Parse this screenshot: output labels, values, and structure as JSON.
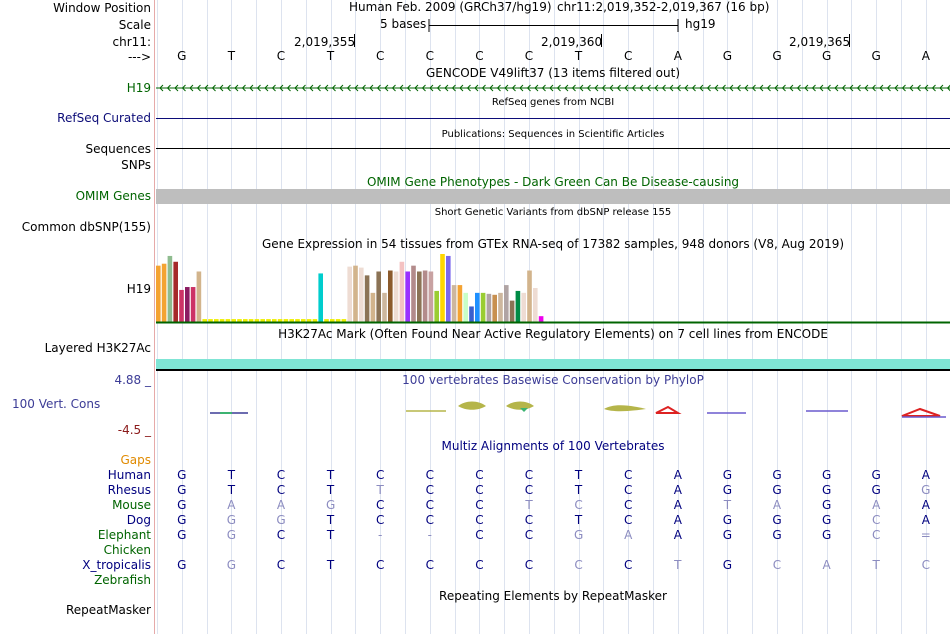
{
  "left_labels": {
    "window_position": "Window Position",
    "scale": "Scale",
    "chrom": "chr11:",
    "arrow": "--->",
    "h19_gencode": "H19",
    "refseq_curated": "RefSeq Curated",
    "sequences": "Sequences",
    "snps": "SNPs",
    "omim_genes": "OMIM Genes",
    "common_dbsnp": "Common dbSNP(155)",
    "h19_gtex": "H19",
    "layered_h3k27ac": "Layered H3K27Ac",
    "phylop_max": "4.88 _",
    "vert_cons": "100 Vert. Cons",
    "phylop_min": "-4.5 _",
    "gaps": "Gaps",
    "species": [
      "Human",
      "Rhesus",
      "Mouse",
      "Dog",
      "Elephant",
      "Chicken",
      "X_tropicalis",
      "Zebrafish"
    ],
    "repeatmasker": "RepeatMasker"
  },
  "header": {
    "assembly": "Human Feb. 2009 (GRCh37/hg19)",
    "position": "chr11:2,019,352-2,019,367 (16 bp)",
    "scale_text": "5 bases",
    "scale_db": "hg19",
    "ruler": [
      "2,019,355",
      "2,019,360",
      "2,019,365"
    ]
  },
  "bases": [
    "G",
    "T",
    "C",
    "T",
    "C",
    "C",
    "C",
    "C",
    "T",
    "C",
    "A",
    "G",
    "G",
    "G",
    "G",
    "A"
  ],
  "tracks": {
    "gencode_title": "GENCODE V49lift37 (13 items filtered out)",
    "refseq_title": "RefSeq genes from NCBI",
    "publications_title": "Publications: Sequences in Scientific Articles",
    "omim_title": "OMIM Gene Phenotypes - Dark Green Can Be Disease-causing",
    "dbsnp_title": "Short Genetic Variants from dbSNP release 155",
    "gtex_title": "Gene Expression in 54 tissues from GTEx RNA-seq of 17382 samples, 948 donors (V8, Aug 2019)",
    "h3k27ac_title": "H3K27Ac Mark (Often Found Near Active Regulatory Elements) on 7 cell lines from ENCODE",
    "phylop_title": "100 vertebrates Basewise Conservation by PhyloP",
    "multiz_title": "Multiz Alignments of 100 Vertebrates",
    "repeatmasker_title": "Repeating Elements by RepeatMasker"
  },
  "colors": {
    "gencode": "#006400",
    "refseq": "#0c0c78",
    "omim": "#006400",
    "phylop": "#3c3c96",
    "multiz": "#00007f",
    "gaps": "#e08a00",
    "h3k27ac": "#7fe5d5"
  },
  "gtex": {
    "values": [
      58,
      60,
      68,
      62,
      33,
      36,
      36,
      52,
      3,
      3,
      3,
      3,
      3,
      3,
      3,
      3,
      3,
      3,
      3,
      3,
      3,
      3,
      3,
      3,
      3,
      3,
      3,
      3,
      50,
      3,
      3,
      3,
      3,
      57,
      58,
      56,
      48,
      30,
      52,
      30,
      53,
      52,
      62,
      52,
      58,
      52,
      53,
      52,
      32,
      70,
      68,
      38,
      38,
      30,
      16,
      30,
      30,
      29,
      28,
      30,
      38,
      22,
      32,
      30,
      53,
      35,
      6
    ],
    "colors": [
      "#f4a332",
      "#f4a332",
      "#8fbc8f",
      "#a52a2a",
      "#cc3366",
      "#8b1c62",
      "#cc3366",
      "#d2b48c",
      "#eeee00",
      "#eeee00",
      "#eeee00",
      "#eeee00",
      "#eeee00",
      "#eeee00",
      "#eeee00",
      "#eeee00",
      "#eeee00",
      "#eeee00",
      "#eeee00",
      "#eeee00",
      "#eeee00",
      "#eeee00",
      "#eeee00",
      "#eeee00",
      "#eeee00",
      "#eeee00",
      "#eeee00",
      "#eeee00",
      "#00cdcd",
      "#eeee00",
      "#eeee00",
      "#eeee00",
      "#eeee00",
      "#eedcd3",
      "#d2b48c",
      "#eedcd3",
      "#8b7355",
      "#d2b48c",
      "#8b7355",
      "#cdb79e",
      "#8b5a2b",
      "#eedcd3",
      "#f4c2c2",
      "#9b30ff",
      "#b38b8b",
      "#8b7355",
      "#b38b8b",
      "#c8a2a2",
      "#9acd32",
      "#ffd700",
      "#7b68ee",
      "#cdb79e",
      "#f4a332",
      "#c8ffc8",
      "#3a5fcd",
      "#1e90ff",
      "#9acd32",
      "#b0a4a4",
      "#c89050",
      "#cdb79e",
      "#b0a4a4",
      "#8b7355",
      "#008b45",
      "#eedcd3",
      "#d2b48c",
      "#eedcd3",
      "#ee00ee"
    ]
  },
  "alignments": [
    {
      "species": "Human",
      "bases": [
        "G",
        "T",
        "C",
        "T",
        "C",
        "C",
        "C",
        "C",
        "T",
        "C",
        "A",
        "G",
        "G",
        "G",
        "G",
        "A"
      ],
      "dim": [
        0,
        0,
        0,
        0,
        0,
        0,
        0,
        0,
        0,
        0,
        0,
        0,
        0,
        0,
        0,
        0
      ]
    },
    {
      "species": "Rhesus",
      "bases": [
        "G",
        "T",
        "C",
        "T",
        "T",
        "C",
        "C",
        "C",
        "T",
        "C",
        "A",
        "G",
        "G",
        "G",
        "G",
        "G"
      ],
      "dim": [
        0,
        0,
        0,
        0,
        1,
        0,
        0,
        0,
        0,
        0,
        0,
        0,
        0,
        0,
        0,
        1
      ]
    },
    {
      "species": "Mouse",
      "bases": [
        "G",
        "A",
        "A",
        "G",
        "C",
        "C",
        "C",
        "T",
        "C",
        "C",
        "A",
        "T",
        "A",
        "G",
        "A",
        "A"
      ],
      "dim": [
        0,
        1,
        1,
        1,
        0,
        0,
        0,
        1,
        1,
        0,
        0,
        1,
        1,
        0,
        1,
        0
      ]
    },
    {
      "species": "Dog",
      "bases": [
        "G",
        "G",
        "G",
        "T",
        "C",
        "C",
        "C",
        "C",
        "T",
        "C",
        "A",
        "G",
        "G",
        "G",
        "C",
        "A"
      ],
      "dim": [
        0,
        1,
        1,
        0,
        0,
        0,
        0,
        0,
        0,
        0,
        0,
        0,
        0,
        0,
        1,
        0
      ]
    },
    {
      "species": "Elephant",
      "bases": [
        "G",
        "G",
        "C",
        "T",
        "-",
        "-",
        "C",
        "C",
        "G",
        "A",
        "A",
        "G",
        "G",
        "G",
        "C",
        "="
      ],
      "dim": [
        0,
        1,
        0,
        0,
        1,
        1,
        0,
        0,
        1,
        1,
        0,
        0,
        0,
        0,
        1,
        1
      ]
    },
    {
      "species": "Chicken",
      "bases": [],
      "dim": []
    },
    {
      "species": "X_tropicalis",
      "bases": [
        "G",
        "G",
        "C",
        "T",
        "C",
        "C",
        "C",
        "C",
        "C",
        "C",
        "T",
        "G",
        "C",
        "A",
        "T",
        "C"
      ],
      "dim": [
        0,
        1,
        0,
        0,
        0,
        0,
        0,
        0,
        1,
        0,
        1,
        0,
        1,
        1,
        1,
        1
      ]
    },
    {
      "species": "Zebrafish",
      "bases": [],
      "dim": []
    }
  ]
}
